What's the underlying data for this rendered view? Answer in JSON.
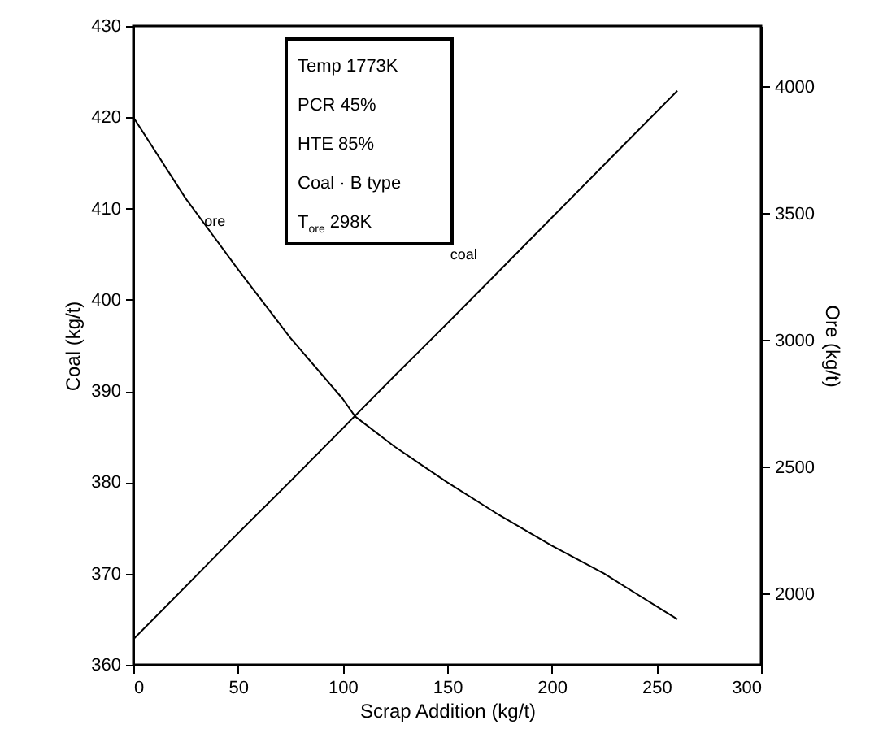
{
  "chart_data": {
    "type": "line",
    "xlabel": "Scrap Addition (kg/t)",
    "ylabel": "Coal (kg/t)",
    "y2label": "Ore (kg/t)",
    "x": [
      0,
      25,
      50,
      75,
      100,
      106,
      125,
      150,
      175,
      200,
      225,
      260
    ],
    "series": [
      {
        "name": "coal",
        "color": "#000000",
        "values": [
          362.8,
          368.6,
          374.4,
          380.1,
          385.9,
          387.3,
          391.7,
          397.4,
          403.2,
          409.0,
          414.8,
          422.9
        ]
      },
      {
        "name": "ore",
        "color": "#000000",
        "axis": "y2",
        "values": [
          3880,
          3560,
          3280,
          3010,
          2770,
          2700,
          2580,
          2440,
          2310,
          2190,
          2080,
          1900
        ]
      }
    ],
    "xlim": [
      0,
      300
    ],
    "xticks": [
      0,
      50,
      100,
      150,
      200,
      250,
      300
    ],
    "ylim": [
      360,
      430
    ],
    "yticks": [
      360,
      370,
      380,
      390,
      400,
      410,
      420,
      430
    ],
    "y2lim": [
      1720,
      4240
    ],
    "y2ticks": [
      2000,
      2500,
      3000,
      3500,
      4000
    ],
    "annotations": [
      "Temp  1773K",
      "PCR  45%",
      "HTE  85%",
      "Coal · B type",
      "T$_{ore}$  298K"
    ],
    "grid": false,
    "marker": "none",
    "line_style": "solid"
  }
}
